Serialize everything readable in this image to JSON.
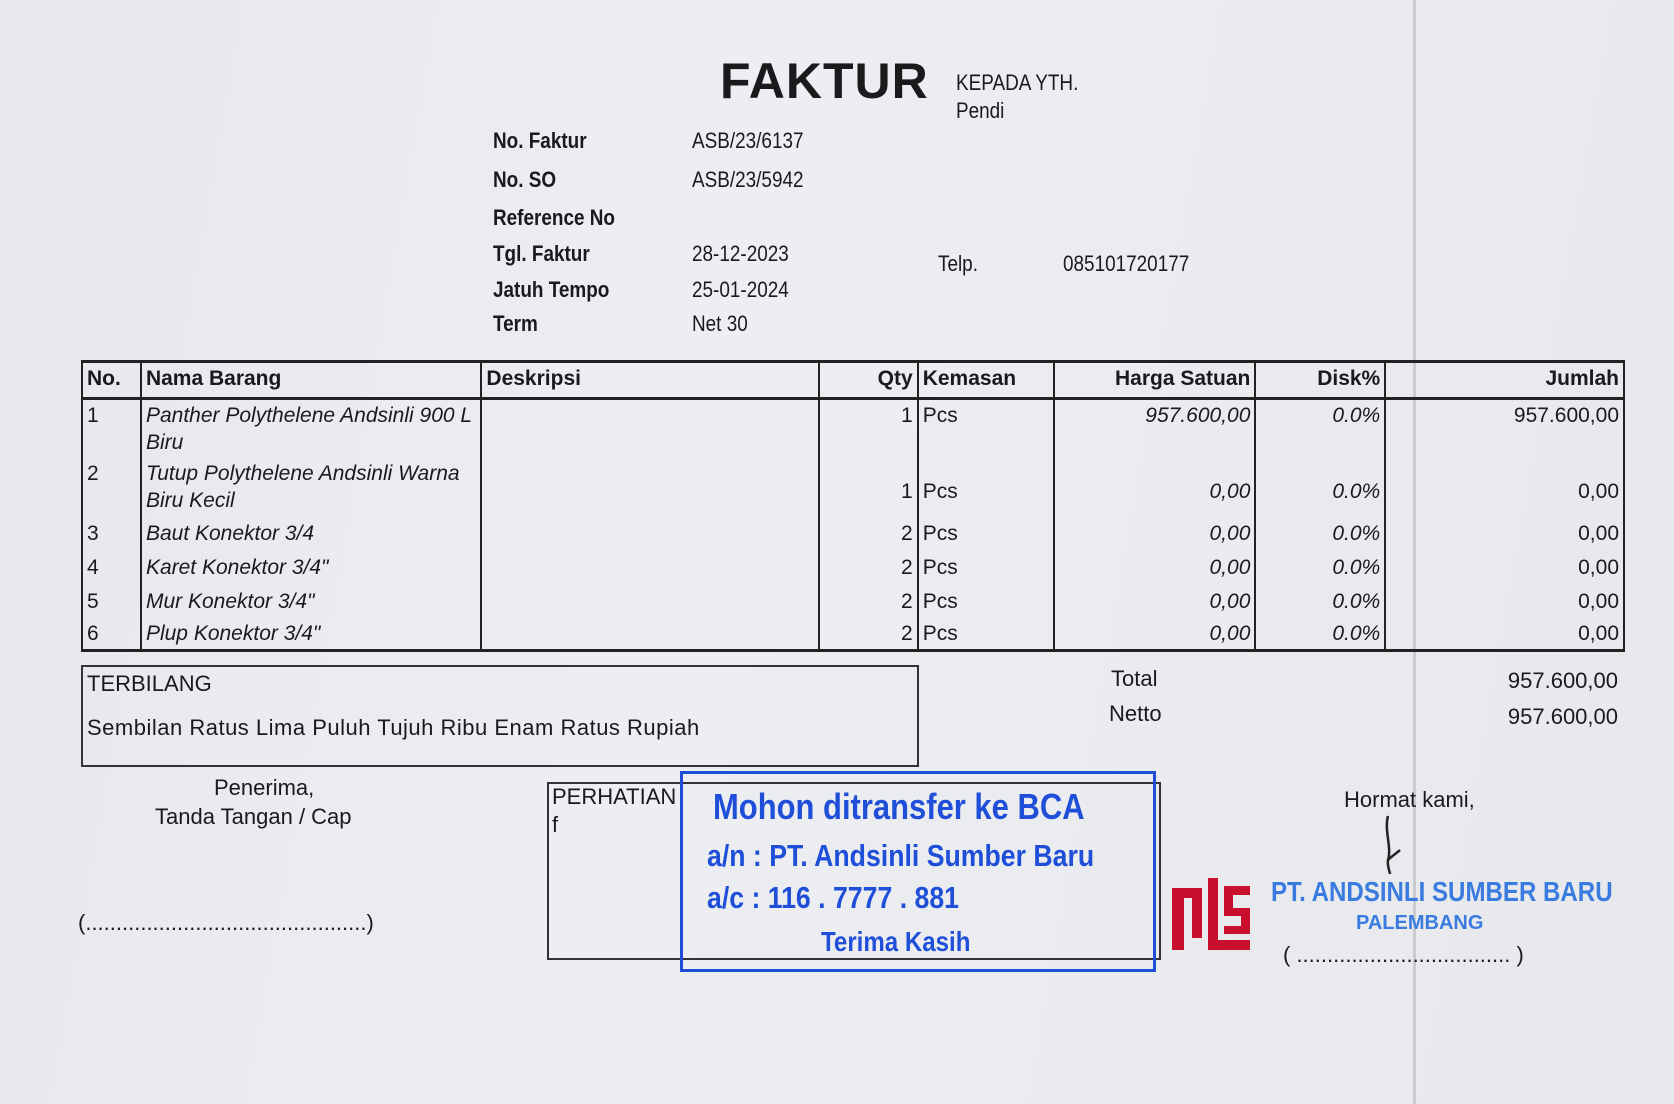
{
  "header": {
    "title": "FAKTUR",
    "recipient_label": "KEPADA YTH.",
    "recipient_name": "Pendi",
    "phone_label": "Telp.",
    "phone_value": "085101720177"
  },
  "info": [
    {
      "label": "No. Faktur",
      "value": "ASB/23/6137"
    },
    {
      "label": "No. SO",
      "value": "ASB/23/5942"
    },
    {
      "label": "Reference No",
      "value": ""
    },
    {
      "label": "Tgl. Faktur",
      "value": "28-12-2023"
    },
    {
      "label": "Jatuh Tempo",
      "value": "25-01-2024"
    },
    {
      "label": "Term",
      "value": "Net 30"
    }
  ],
  "table": {
    "columns": [
      "No.",
      "Nama Barang",
      "Deskripsi",
      "Qty",
      "Kemasan",
      "Harga Satuan",
      "Disk%",
      "Jumlah"
    ],
    "rows": [
      {
        "no": "1",
        "name": "Panther Polythelene Andsinli 900 L Biru",
        "desc": "",
        "qty": "1",
        "unit": "Pcs",
        "price": "957.600,00",
        "disc": "0.0%",
        "total": "957.600,00"
      },
      {
        "no": "2",
        "name": "Tutup Polythelene Andsinli Warna Biru Kecil",
        "desc": "",
        "qty": "1",
        "unit": "Pcs",
        "price": "0,00",
        "disc": "0.0%",
        "total": "0,00"
      },
      {
        "no": "3",
        "name": "Baut Konektor 3/4",
        "desc": "",
        "qty": "2",
        "unit": "Pcs",
        "price": "0,00",
        "disc": "0.0%",
        "total": "0,00"
      },
      {
        "no": "4",
        "name": "Karet Konektor 3/4\"",
        "desc": "",
        "qty": "2",
        "unit": "Pcs",
        "price": "0,00",
        "disc": "0.0%",
        "total": "0,00"
      },
      {
        "no": "5",
        "name": "Mur Konektor 3/4\"",
        "desc": "",
        "qty": "2",
        "unit": "Pcs",
        "price": "0,00",
        "disc": "0.0%",
        "total": "0,00"
      },
      {
        "no": "6",
        "name": "Plup Konektor 3/4\"",
        "desc": "",
        "qty": "2",
        "unit": "Pcs",
        "price": "0,00",
        "disc": "0.0%",
        "total": "0,00"
      }
    ]
  },
  "terbilang": {
    "label": "TERBILANG",
    "text": "Sembilan Ratus Lima Puluh Tujuh Ribu Enam Ratus Rupiah"
  },
  "totals": {
    "total_label": "Total",
    "total_value": "957.600,00",
    "netto_label": "Netto",
    "netto_value": "957.600,00"
  },
  "receiver": {
    "line1": "Penerima,",
    "line2": "Tanda Tangan / Cap",
    "sign_line": "(..............................................)"
  },
  "notice": {
    "label": "PERHATIAN",
    "mark": "f"
  },
  "bank_stamp": {
    "line1": "Mohon ditransfer ke BCA",
    "line2": "a/n : PT. Andsinli Sumber Baru",
    "line3": "a/c : 116 . 7777 . 881",
    "line4": "Terima Kasih",
    "color": "#1f4fd8"
  },
  "sender": {
    "closing": "Hormat kami,",
    "sign_line": "( ................................... )",
    "company_stamp": "PT. ANDSINLI SUMBER BARU",
    "city_stamp": "PALEMBANG",
    "logo_text": "ASB",
    "logo_color": "#c8102e"
  }
}
